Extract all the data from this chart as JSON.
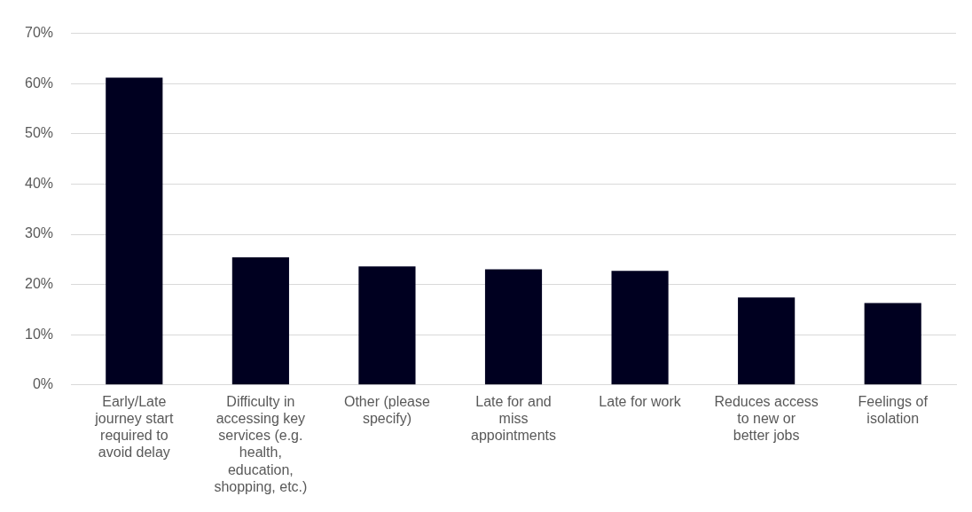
{
  "chart_data": {
    "type": "bar",
    "categories": [
      "Early/Late journey start required to avoid delay",
      "Difficulty in accessing key services (e.g. health, education, shopping, etc.)",
      "Other (please specify)",
      "Late for and miss appointments",
      "Late for work",
      "Reduces access to new or better jobs",
      "Feelings of isolation"
    ],
    "values": [
      61.2,
      25.4,
      23.6,
      23,
      22.7,
      17.4,
      16.3
    ],
    "color": "#000020",
    "ylim": [
      0,
      70
    ],
    "yticks": [
      {
        "value": 0,
        "label": "0%"
      },
      {
        "value": 10,
        "label": "10%"
      },
      {
        "value": 20,
        "label": "20%"
      },
      {
        "value": 30,
        "label": "30%"
      },
      {
        "value": 40,
        "label": "40%"
      },
      {
        "value": 50,
        "label": "50%"
      },
      {
        "value": 60,
        "label": "60%"
      },
      {
        "value": 70,
        "label": "70%"
      }
    ],
    "grid": "y"
  }
}
